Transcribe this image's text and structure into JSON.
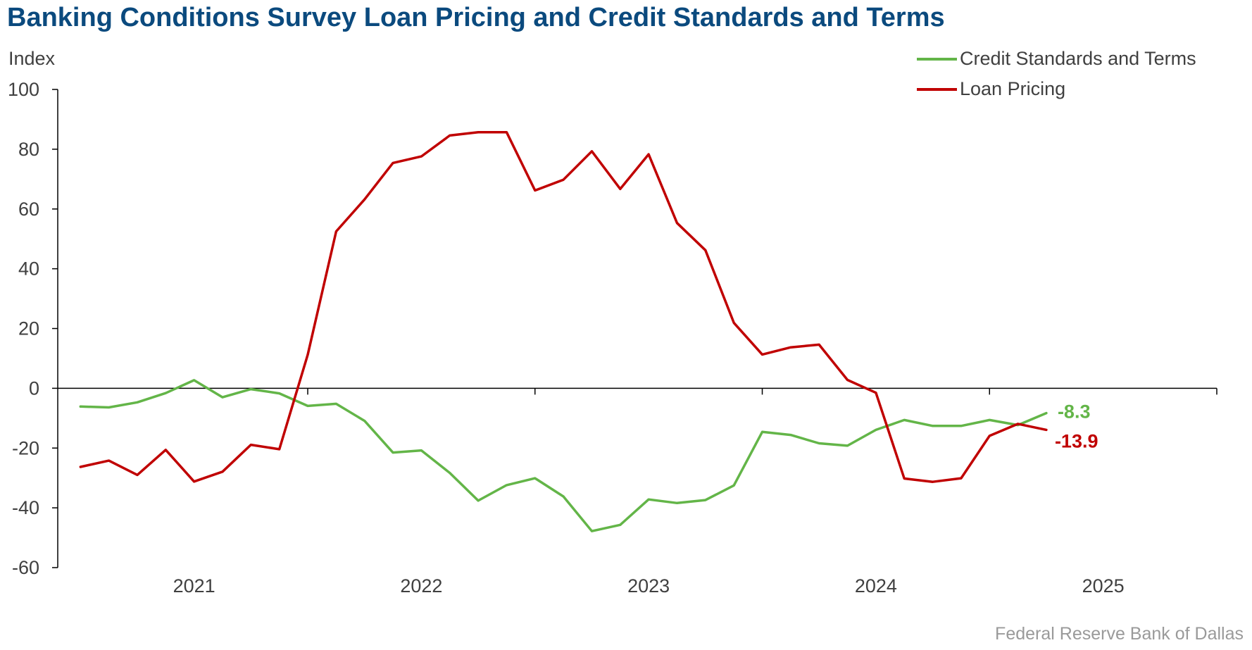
{
  "title": "Banking Conditions Survey Loan Pricing and Credit Standards and Terms",
  "source": "Federal Reserve Bank of Dallas",
  "chart_data": {
    "type": "line",
    "title": "Banking Conditions Survey Loan Pricing and Credit Standards and Terms",
    "ylabel": "Index",
    "xlabel": "",
    "ylim": [
      -60,
      100
    ],
    "yticks": [
      100,
      80,
      60,
      40,
      20,
      0,
      -20,
      -40,
      -60
    ],
    "xlim": [
      2020.4,
      2025.5
    ],
    "xticks": [
      2021,
      2022,
      2023,
      2024,
      2025
    ],
    "xtick_labels": [
      "2021",
      "2022",
      "2023",
      "2024",
      "2025"
    ],
    "grid": false,
    "legend_position": "top-right",
    "x": [
      2020.5,
      2020.625,
      2020.75,
      2020.875,
      2021.0,
      2021.125,
      2021.25,
      2021.375,
      2021.5,
      2021.625,
      2021.75,
      2021.875,
      2022.0,
      2022.125,
      2022.25,
      2022.375,
      2022.5,
      2022.625,
      2022.75,
      2022.875,
      2023.0,
      2023.125,
      2023.25,
      2023.375,
      2023.5,
      2023.625,
      2023.75,
      2023.875,
      2024.0,
      2024.125,
      2024.25,
      2024.375,
      2024.5,
      2024.625,
      2024.75
    ],
    "series": [
      {
        "name": "Credit Standards and Terms",
        "color": "#63b548",
        "end_label": "-8.3",
        "values": [
          -6.1,
          -6.4,
          -4.7,
          -1.6,
          2.7,
          -3.0,
          -0.3,
          -1.7,
          -5.9,
          -5.2,
          -10.9,
          -21.5,
          -20.8,
          -28.3,
          -37.6,
          -32.4,
          -30.1,
          -36.2,
          -47.8,
          -45.7,
          -37.2,
          -38.4,
          -37.4,
          -32.5,
          -14.6,
          -15.6,
          -18.4,
          -19.2,
          -13.9,
          -10.6,
          -12.6,
          -12.6,
          -10.6,
          -12.3,
          -8.3
        ]
      },
      {
        "name": "Loan Pricing",
        "color": "#c00000",
        "end_label": "-13.9",
        "values": [
          -26.3,
          -24.2,
          -29.0,
          -20.6,
          -31.2,
          -27.9,
          -18.9,
          -20.4,
          11.2,
          52.5,
          63.2,
          75.4,
          77.6,
          84.6,
          85.7,
          85.7,
          66.2,
          69.8,
          79.3,
          66.7,
          78.3,
          55.3,
          46.2,
          21.9,
          11.3,
          13.7,
          14.6,
          2.8,
          -1.5,
          -30.2,
          -31.3,
          -30.1,
          -15.9,
          -11.9,
          -13.9
        ]
      }
    ]
  }
}
